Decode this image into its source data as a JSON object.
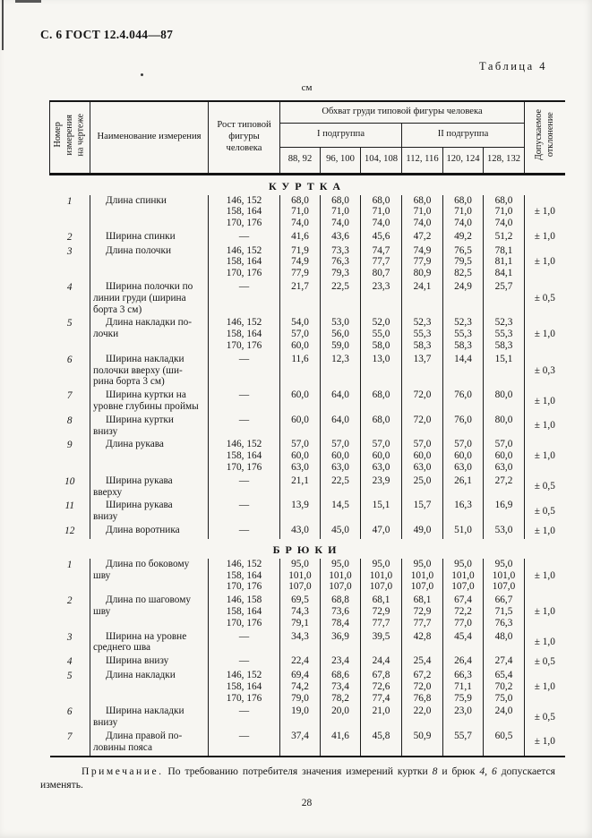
{
  "page": {
    "header": "С. 6 ГОСТ 12.4.044—87",
    "table_caption": "Таблица 4",
    "unit": "см",
    "page_number": "28",
    "note": {
      "label": "Примечание.",
      "t1": " По требованию потребителя значения измерений куртки ",
      "i1": "8",
      "t2": " и брюк ",
      "i2": "4, 6",
      "t3": " допускается изменять."
    }
  },
  "table": {
    "col_headers": {
      "number": "Номер\nизмерения\nна чертеже",
      "name": "Наименование измерения",
      "rost": "Рост типовой\nфигуры\nчеловека",
      "chest": "Обхват груди типовой фигуры человека",
      "group1": "I подгруппа",
      "group2": "II подгруппа",
      "sizes": [
        "88, 92",
        "96, 100",
        "104, 108",
        "112, 116",
        "120, 124",
        "128, 132"
      ],
      "deviation": "Допускаемое\nотклонение"
    },
    "sections": [
      {
        "title": "КУРТКА",
        "rows": [
          {
            "num": "1",
            "name": "Длина спинки",
            "dev": "± 1,0",
            "lines": [
              {
                "rost": "146, 152",
                "vals": [
                  "68,0",
                  "68,0",
                  "68,0",
                  "68,0",
                  "68,0",
                  "68,0"
                ]
              },
              {
                "rost": "158, 164",
                "vals": [
                  "71,0",
                  "71,0",
                  "71,0",
                  "71,0",
                  "71,0",
                  "71,0"
                ]
              },
              {
                "rost": "170, 176",
                "vals": [
                  "74,0",
                  "74,0",
                  "74,0",
                  "74,0",
                  "74,0",
                  "74,0"
                ]
              }
            ]
          },
          {
            "num": "2",
            "name": "Ширина спинки",
            "dev": "± 1,0",
            "lines": [
              {
                "rost": "—",
                "vals": [
                  "41,6",
                  "43,6",
                  "45,6",
                  "47,2",
                  "49,2",
                  "51,2"
                ]
              }
            ]
          },
          {
            "num": "3",
            "name": "Длина полочки",
            "dev": "± 1,0",
            "lines": [
              {
                "rost": "146, 152",
                "vals": [
                  "71,9",
                  "73,3",
                  "74,7",
                  "74,9",
                  "76,5",
                  "78,1"
                ]
              },
              {
                "rost": "158, 164",
                "vals": [
                  "74,9",
                  "76,3",
                  "77,7",
                  "77,9",
                  "79,5",
                  "81,1"
                ]
              },
              {
                "rost": "170, 176",
                "vals": [
                  "77,9",
                  "79,3",
                  "80,7",
                  "80,9",
                  "82,5",
                  "84,1"
                ]
              }
            ]
          },
          {
            "num": "4",
            "name": "Ширина полочки по\nлинии груди (ширина\nборта 3 см)",
            "dev": "± 0,5",
            "lines": [
              {
                "rost": "—",
                "vals": [
                  "21,7",
                  "22,5",
                  "23,3",
                  "24,1",
                  "24,9",
                  "25,7"
                ]
              }
            ]
          },
          {
            "num": "5",
            "name": "Длина накладки по-\nлочки",
            "dev": "± 1,0",
            "lines": [
              {
                "rost": "146, 152",
                "vals": [
                  "54,0",
                  "53,0",
                  "52,0",
                  "52,3",
                  "52,3",
                  "52,3"
                ]
              },
              {
                "rost": "158, 164",
                "vals": [
                  "57,0",
                  "56,0",
                  "55,0",
                  "55,3",
                  "55,3",
                  "55,3"
                ]
              },
              {
                "rost": "170, 176",
                "vals": [
                  "60,0",
                  "59,0",
                  "58,0",
                  "58,3",
                  "58,3",
                  "58,3"
                ]
              }
            ]
          },
          {
            "num": "6",
            "name": "Ширина накладки\nполочки вверху (ши-\nрина борта 3 см)",
            "dev": "± 0,3",
            "lines": [
              {
                "rost": "—",
                "vals": [
                  "11,6",
                  "12,3",
                  "13,0",
                  "13,7",
                  "14,4",
                  "15,1"
                ]
              }
            ]
          },
          {
            "num": "7",
            "name": "Ширина куртки на\nуровне глубины проймы",
            "dev": "± 1,0",
            "lines": [
              {
                "rost": "—",
                "vals": [
                  "60,0",
                  "64,0",
                  "68,0",
                  "72,0",
                  "76,0",
                  "80,0"
                ]
              }
            ]
          },
          {
            "num": "8",
            "name": "Ширина куртки\nвнизу",
            "dev": "± 1,0",
            "lines": [
              {
                "rost": "—",
                "vals": [
                  "60,0",
                  "64,0",
                  "68,0",
                  "72,0",
                  "76,0",
                  "80,0"
                ]
              }
            ]
          },
          {
            "num": "9",
            "name": "Длина рукава",
            "dev": "± 1,0",
            "lines": [
              {
                "rost": "146, 152",
                "vals": [
                  "57,0",
                  "57,0",
                  "57,0",
                  "57,0",
                  "57,0",
                  "57,0"
                ]
              },
              {
                "rost": "158, 164",
                "vals": [
                  "60,0",
                  "60,0",
                  "60,0",
                  "60,0",
                  "60,0",
                  "60,0"
                ]
              },
              {
                "rost": "170, 176",
                "vals": [
                  "63,0",
                  "63,0",
                  "63,0",
                  "63,0",
                  "63,0",
                  "63,0"
                ]
              }
            ]
          },
          {
            "num": "10",
            "name": "Ширина рукава\nвверху",
            "dev": "± 0,5",
            "lines": [
              {
                "rost": "—",
                "vals": [
                  "21,1",
                  "22,5",
                  "23,9",
                  "25,0",
                  "26,1",
                  "27,2"
                ]
              }
            ]
          },
          {
            "num": "11",
            "name": "Ширина рукава\nвнизу",
            "dev": "± 0,5",
            "lines": [
              {
                "rost": "—",
                "vals": [
                  "13,9",
                  "14,5",
                  "15,1",
                  "15,7",
                  "16,3",
                  "16,9"
                ]
              }
            ]
          },
          {
            "num": "12",
            "name": "Длина воротника",
            "dev": "± 1,0",
            "lines": [
              {
                "rost": "—",
                "vals": [
                  "43,0",
                  "45,0",
                  "47,0",
                  "49,0",
                  "51,0",
                  "53,0"
                ]
              }
            ]
          }
        ]
      },
      {
        "title": "БРЮКИ",
        "rows": [
          {
            "num": "1",
            "name": "Длина по боковому\nшву",
            "dev": "± 1,0",
            "lines": [
              {
                "rost": "146, 152",
                "vals": [
                  "95,0",
                  "95,0",
                  "95,0",
                  "95,0",
                  "95,0",
                  "95,0"
                ]
              },
              {
                "rost": "158, 164",
                "vals": [
                  "101,0",
                  "101,0",
                  "101,0",
                  "101,0",
                  "101,0",
                  "101,0"
                ]
              },
              {
                "rost": "170, 176",
                "vals": [
                  "107,0",
                  "107,0",
                  "107,0",
                  "107,0",
                  "107,0",
                  "107,0"
                ]
              }
            ]
          },
          {
            "num": "2",
            "name": "Длина по шаговому\nшву",
            "dev": "± 1,0",
            "lines": [
              {
                "rost": "146, 158",
                "vals": [
                  "69,5",
                  "68,8",
                  "68,1",
                  "68,1",
                  "67,4",
                  "66,7"
                ]
              },
              {
                "rost": "158, 164",
                "vals": [
                  "74,3",
                  "73,6",
                  "72,9",
                  "72,9",
                  "72,2",
                  "71,5"
                ]
              },
              {
                "rost": "170, 176",
                "vals": [
                  "79,1",
                  "78,4",
                  "77,7",
                  "77,7",
                  "77,0",
                  "76,3"
                ]
              }
            ]
          },
          {
            "num": "3",
            "name": "Ширина на уровне\nсреднего шва",
            "dev": "± 1,0",
            "lines": [
              {
                "rost": "—",
                "vals": [
                  "34,3",
                  "36,9",
                  "39,5",
                  "42,8",
                  "45,4",
                  "48,0"
                ]
              }
            ]
          },
          {
            "num": "4",
            "name": "Ширина внизу",
            "dev": "± 0,5",
            "lines": [
              {
                "rost": "—",
                "vals": [
                  "22,4",
                  "23,4",
                  "24,4",
                  "25,4",
                  "26,4",
                  "27,4"
                ]
              }
            ]
          },
          {
            "num": "5",
            "name": "Длина накладки",
            "dev": "± 1,0",
            "lines": [
              {
                "rost": "146, 152",
                "vals": [
                  "69,4",
                  "68,6",
                  "67,8",
                  "67,2",
                  "66,3",
                  "65,4"
                ]
              },
              {
                "rost": "158, 164",
                "vals": [
                  "74,2",
                  "73,4",
                  "72,6",
                  "72,0",
                  "71,1",
                  "70,2"
                ]
              },
              {
                "rost": "170, 176",
                "vals": [
                  "79,0",
                  "78,2",
                  "77,4",
                  "76,8",
                  "75,9",
                  "75,0"
                ]
              }
            ]
          },
          {
            "num": "6",
            "name": "Ширина накладки\nвнизу",
            "dev": "± 0,5",
            "lines": [
              {
                "rost": "—",
                "vals": [
                  "19,0",
                  "20,0",
                  "21,0",
                  "22,0",
                  "23,0",
                  "24,0"
                ]
              }
            ]
          },
          {
            "num": "7",
            "name": "Длина правой по-\nловины пояса",
            "dev": "± 1,0",
            "lines": [
              {
                "rost": "—",
                "vals": [
                  "37,4",
                  "41,6",
                  "45,8",
                  "50,9",
                  "55,7",
                  "60,5"
                ]
              }
            ]
          }
        ]
      }
    ]
  }
}
